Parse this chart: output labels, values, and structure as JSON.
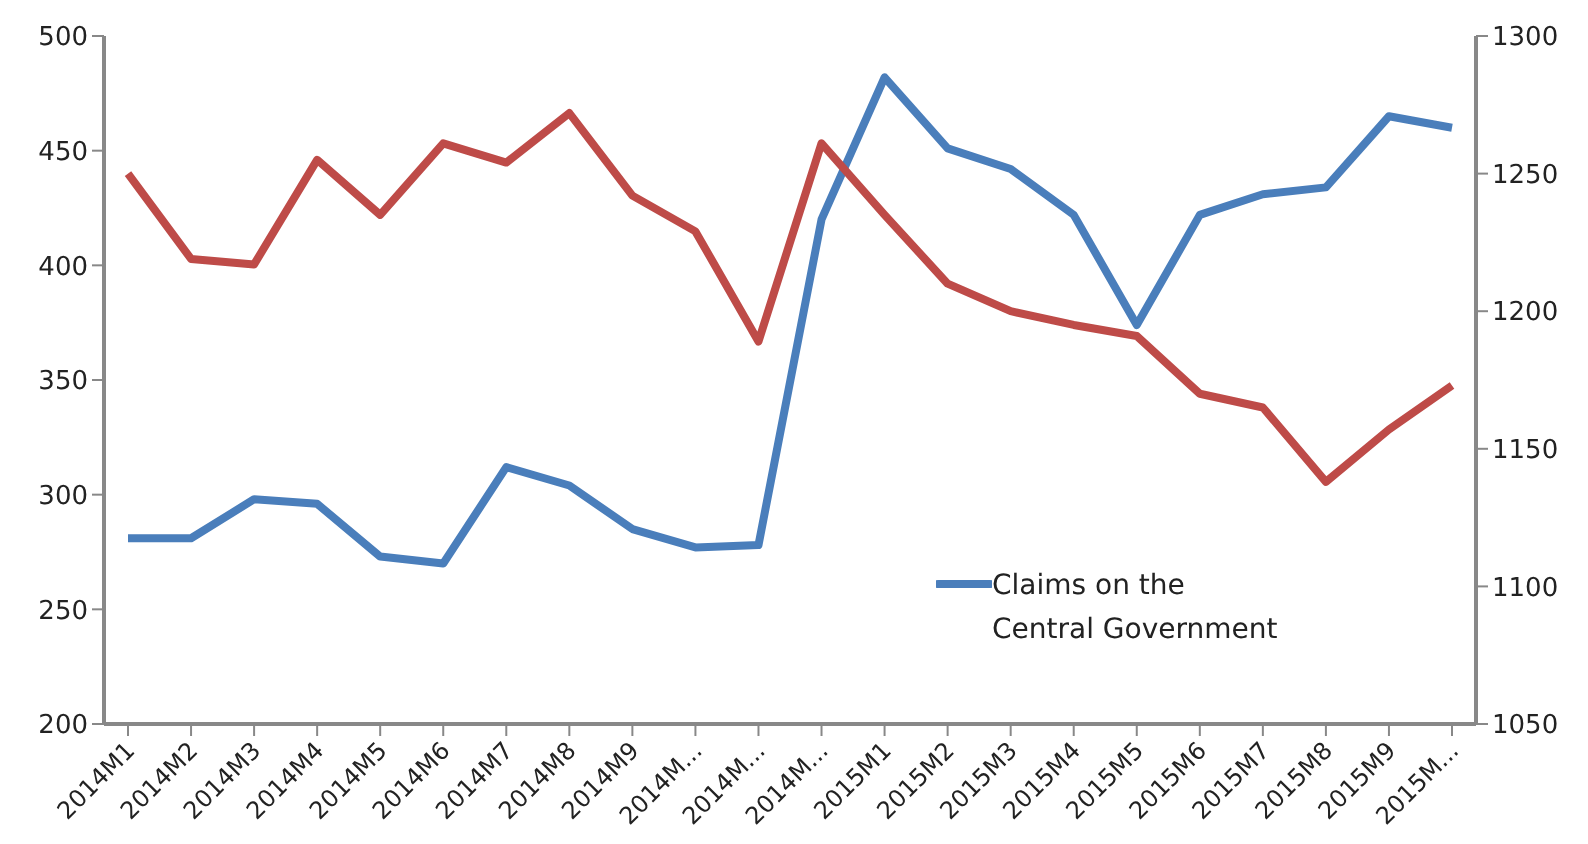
{
  "chart_data": {
    "type": "line",
    "categories": [
      "2014M1",
      "2014M2",
      "2014M3",
      "2014M4",
      "2014M5",
      "2014M6",
      "2014M7",
      "2014M8",
      "2014M9",
      "2014M...",
      "2014M...",
      "2014M...",
      "2015M1",
      "2015M2",
      "2015M3",
      "2015M4",
      "2015M5",
      "2015M6",
      "2015M7",
      "2015M8",
      "2015M9",
      "2015M..."
    ],
    "series": [
      {
        "name": "Claims on the Central Government",
        "color": "#4a7ebb",
        "values": [
          281,
          281,
          298,
          296,
          273,
          270,
          312,
          304,
          285,
          277,
          278,
          420,
          482,
          451,
          442,
          422,
          374,
          422,
          431,
          434,
          465,
          460
        ]
      },
      {
        "color": "#be4b48",
        "axis": "y2",
        "values": [
          1250,
          1219,
          1217,
          1255,
          1235,
          1261,
          1254,
          1272,
          1242,
          1229,
          1189,
          1261,
          1235,
          1210,
          1200,
          1195,
          1191,
          1170,
          1165,
          1138,
          1157,
          1173
        ]
      }
    ],
    "ylim": [
      200,
      500
    ],
    "yticks": [
      200,
      250,
      300,
      350,
      400,
      450,
      500
    ],
    "y2lim": [
      1050,
      1300
    ],
    "y2ticks": [
      1050,
      1100,
      1150,
      1200,
      1250,
      1300
    ],
    "legend": "bottom right",
    "grid": false,
    "marker": "none",
    "line_style": "solid"
  }
}
